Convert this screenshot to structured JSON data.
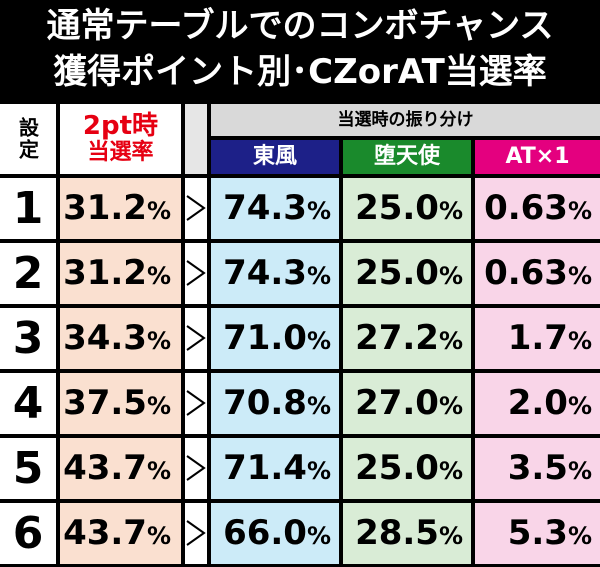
{
  "title": {
    "line1": "通常テーブルでのコンボチャンス",
    "line2": "獲得ポイント別･CZorAT当選率"
  },
  "headers": {
    "setting": "設定",
    "rate_line1": "2pt時",
    "rate_line2": "当選率",
    "distribution": "当選時の振り分け",
    "east": "東風",
    "fallen": "堕天使",
    "at": "AT×1"
  },
  "rows": [
    {
      "setting": "1",
      "rate": "31.2",
      "east": "74.3",
      "fallen": "25.0",
      "at": "0.63"
    },
    {
      "setting": "2",
      "rate": "31.2",
      "east": "74.3",
      "fallen": "25.0",
      "at": "0.63"
    },
    {
      "setting": "3",
      "rate": "34.3",
      "east": "71.0",
      "fallen": "27.2",
      "at": "1.7"
    },
    {
      "setting": "4",
      "rate": "37.5",
      "east": "70.8",
      "fallen": "27.0",
      "at": "2.0"
    },
    {
      "setting": "5",
      "rate": "43.7",
      "east": "71.4",
      "fallen": "25.0",
      "at": "3.5"
    },
    {
      "setting": "6",
      "rate": "43.7",
      "east": "66.0",
      "fallen": "28.5",
      "at": "5.3"
    }
  ],
  "unit": "%",
  "colors": {
    "title_text": "#ffffff",
    "header_red": "#e60012",
    "east_header": "#1d2088",
    "fallen_header": "#1a8a2c",
    "at_header": "#e4007f",
    "rate_cell": "#fae0d0",
    "east_cell": "#ccebf8",
    "fallen_cell": "#d9ecd6",
    "at_cell": "#f9d5e8"
  }
}
